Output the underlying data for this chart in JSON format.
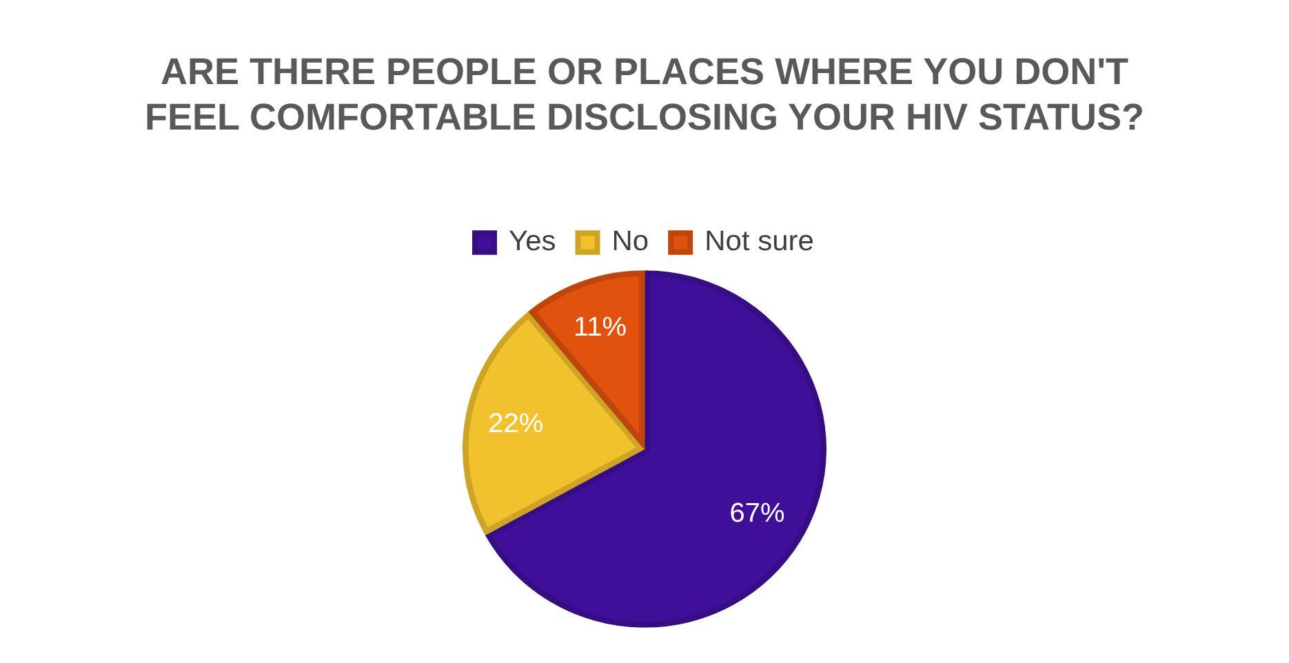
{
  "chart_data": {
    "type": "pie",
    "title": "ARE THERE PEOPLE OR PLACES WHERE YOU DON'T FEEL COMFORTABLE DISCLOSING YOUR HIV STATUS?",
    "categories": [
      "Yes",
      "No",
      "Not sure"
    ],
    "values": [
      67,
      22,
      11
    ],
    "colors": [
      "#3f0f9a",
      "#f2c12e",
      "#e0520e"
    ],
    "value_labels": [
      "67%",
      "22%",
      "11%"
    ],
    "legend": "top"
  }
}
